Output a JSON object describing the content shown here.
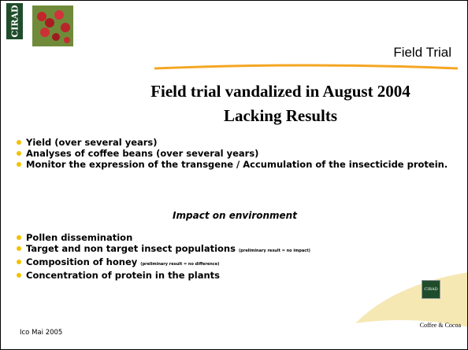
{
  "header": {
    "logo": "CIRAD",
    "section": "Field Trial"
  },
  "title": [
    "Field trial vandalized in August 2004",
    "Lacking Results"
  ],
  "bullets": [
    "Yield (over several years)",
    "Analyses of coffee beans (over several years)",
    "Monitor the expression of the transgene / Accumulation of the insecticide protein."
  ],
  "subheading": "Impact on environment",
  "bullets2": [
    {
      "text": "Pollen dissemination"
    },
    {
      "text": "Target and non target insect populations",
      "note": "(preliminary result = no impact)"
    },
    {
      "text": "Composition of honey",
      "note": "(preliminary result = no difference)"
    },
    {
      "text": "Concentration of protein in the plants"
    }
  ],
  "footer": {
    "left": "Ico Mai 2005",
    "right": "Coffee & Cocoa",
    "logo": "CIRAD"
  }
}
